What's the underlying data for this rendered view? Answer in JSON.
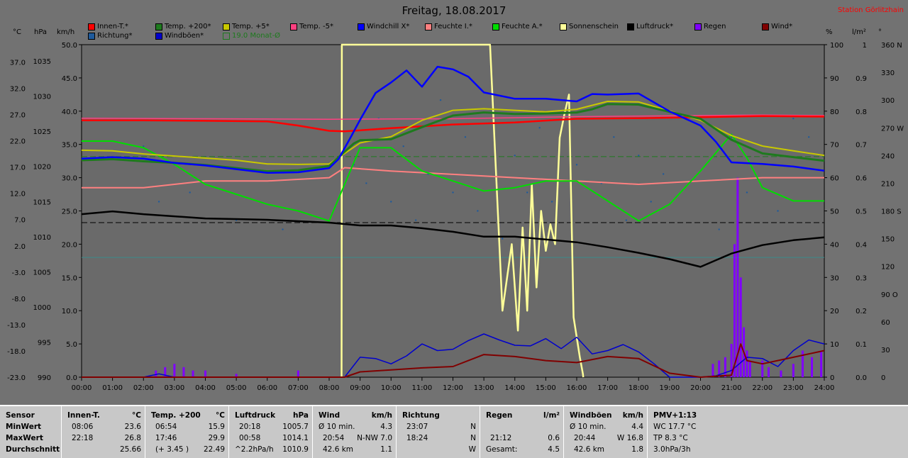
{
  "title": "Freitag, 18.08.2017",
  "station": "Station Görlitzhain",
  "legend": [
    {
      "label": "Innen-T.*",
      "color": "#ff0000"
    },
    {
      "label": "Richtung*",
      "color": "#1e5a9c"
    },
    {
      "label": "Temp. +200*",
      "color": "#1e7a1e"
    },
    {
      "label": "Windböen*",
      "color": "#0000cc"
    },
    {
      "label": "Temp. +5*",
      "color": "#c8c800"
    },
    {
      "label": "19.0 Monat-Ø",
      "color": "#1e7a1e"
    },
    {
      "label": "Temp. -5*",
      "color": "#ff4080"
    },
    {
      "label": "Windchill X*",
      "color": "#0000ff"
    },
    {
      "label": "Feuchte I.*",
      "color": "#ff8080"
    },
    {
      "label": "Feuchte A.*",
      "color": "#00dd00"
    },
    {
      "label": "Sonnenschein",
      "color": "#ffff99"
    },
    {
      "label": "Luftdruck*",
      "color": "#000000"
    },
    {
      "label": "Regen",
      "color": "#8000ff"
    },
    {
      "label": "Wind*",
      "color": "#800000"
    }
  ],
  "units": {
    "celsius": "°C",
    "hpa": "hPa",
    "kmh": "km/h",
    "percent": "%",
    "lm2": "l/m²",
    "deg": "°"
  },
  "chart_data": {
    "type": "line",
    "x_ticks": [
      "00:00",
      "01:00",
      "02:00",
      "03:00",
      "04:00",
      "05:00",
      "06:00",
      "07:00",
      "08:00",
      "09:00",
      "10:00",
      "11:00",
      "12:00",
      "13:00",
      "14:00",
      "15:00",
      "16:00",
      "17:00",
      "18:00",
      "19:00",
      "20:00",
      "21:00",
      "22:00",
      "23:00",
      "24:00"
    ],
    "axes": {
      "celsius_ticks": [
        "37.0",
        "32.0",
        "27.0",
        "22.0",
        "17.0",
        "12.0",
        "7.0",
        "2.0",
        "-3.0",
        "-8.0",
        "-13.0",
        "-18.0",
        "-23.0"
      ],
      "hpa_ticks": [
        "1035",
        "1030",
        "1025",
        "1020",
        "1015",
        "1010",
        "1005",
        "1000",
        "995",
        "990"
      ],
      "kmh_ticks": [
        "50.0",
        "45.0",
        "40.0",
        "35.0",
        "30.0",
        "25.0",
        "20.0",
        "15.0",
        "10.0",
        "5.0",
        "0.0"
      ],
      "percent_ticks": [
        "100",
        "90",
        "80",
        "70",
        "60",
        "50",
        "40",
        "30",
        "20",
        "10",
        "0"
      ],
      "lm2_ticks": [
        "1",
        "0.9",
        "0.8",
        "0.7",
        "0.6",
        "0.5",
        "0.4",
        "0.3",
        "0.2",
        "0.1",
        "0.0"
      ],
      "deg_ticks": [
        "360 N",
        "330",
        "300",
        "270 W",
        "240",
        "210",
        "180 S",
        "150",
        "120",
        "90 O",
        "60",
        "30",
        "0"
      ],
      "ylim_celsius": [
        -23,
        40.3
      ],
      "ylim_kmh": [
        0,
        50
      ],
      "ylim_percent": [
        0,
        100
      ]
    },
    "series": [
      {
        "name": "Innen-T.*",
        "unit": "°C",
        "x": [
          0,
          2,
          4,
          6,
          7,
          8,
          8.5,
          10,
          12,
          14,
          16,
          18,
          20,
          22,
          24
        ],
        "y": [
          25.9,
          25.9,
          25.8,
          25.7,
          24.9,
          23.9,
          23.8,
          24.4,
          25.1,
          25.5,
          26.2,
          26.3,
          26.5,
          26.7,
          26.6
        ]
      },
      {
        "name": "Temp. -5*",
        "unit": "°C",
        "x": [
          0,
          4,
          8,
          12,
          16,
          20,
          22,
          24
        ],
        "y": [
          26.3,
          26.2,
          26.1,
          26.2,
          26.6,
          26.8,
          26.9,
          26.8
        ]
      },
      {
        "name": "Temp. +200*",
        "unit": "°C",
        "x": [
          0,
          1,
          2,
          3,
          4,
          5,
          6,
          7,
          8,
          8.4,
          8.8,
          9,
          10,
          11,
          12,
          13,
          14,
          15,
          16,
          16.5,
          17,
          18,
          19,
          20,
          21,
          22,
          23,
          24
        ],
        "y": [
          18.3,
          18.5,
          18.1,
          17.8,
          17.4,
          16.8,
          16.2,
          16.4,
          17.2,
          19.4,
          21.5,
          22.1,
          22.3,
          24.6,
          26.8,
          27.4,
          27.1,
          27.2,
          27.4,
          28.0,
          29.0,
          28.9,
          27.5,
          26.2,
          22.2,
          19.6,
          18.9,
          18.2
        ]
      },
      {
        "name": "Temp. +5*",
        "unit": "°C",
        "x": [
          0,
          1,
          2,
          3,
          4,
          5,
          6,
          7,
          8,
          8.5,
          9,
          10,
          11,
          12,
          13,
          14,
          15,
          16,
          17,
          18,
          19,
          20,
          21,
          22,
          23,
          24
        ],
        "y": [
          20.2,
          20.1,
          19.5,
          19.1,
          18.7,
          18.3,
          17.6,
          17.5,
          17.6,
          19.6,
          21.6,
          22.8,
          25.9,
          27.8,
          28.1,
          27.8,
          27.5,
          28.0,
          29.5,
          29.4,
          27.7,
          25.9,
          23.0,
          21.0,
          20.1,
          19.2
        ]
      },
      {
        "name": "Windchill X*",
        "unit": "°C",
        "x": [
          0,
          1,
          2,
          3,
          4,
          5,
          6,
          7,
          8,
          8.3,
          8.7,
          9,
          9.5,
          10,
          10.5,
          11,
          11.5,
          12,
          12.5,
          13,
          14,
          15,
          16,
          16.5,
          17,
          18,
          19,
          20,
          20.5,
          21,
          22,
          23,
          24
        ],
        "y": [
          18.6,
          18.9,
          18.6,
          17.8,
          17.3,
          16.6,
          15.9,
          16.0,
          16.8,
          18.5,
          22.7,
          26.0,
          31.1,
          33.1,
          35.4,
          32.3,
          36.1,
          35.6,
          34.2,
          31.2,
          30.0,
          30.0,
          29.5,
          30.9,
          30.8,
          31.0,
          27.6,
          24.9,
          21.8,
          17.9,
          17.6,
          17.1,
          16.3
        ]
      },
      {
        "name": "Feuchte I.*",
        "unit": "%",
        "x": [
          0,
          2,
          4,
          6,
          8,
          8.5,
          10,
          12,
          14,
          16,
          18,
          20,
          22,
          24
        ],
        "y": [
          57,
          57,
          59,
          59,
          60,
          63,
          62,
          61,
          60,
          59,
          58,
          59,
          60,
          60
        ]
      },
      {
        "name": "Feuchte A.*",
        "unit": "%",
        "x": [
          0,
          1,
          2,
          3,
          4,
          5,
          6,
          7,
          8,
          8.5,
          9,
          10,
          11,
          12,
          13,
          14,
          15,
          16,
          17,
          18,
          19,
          20,
          21,
          21.5,
          22,
          23,
          24
        ],
        "y": [
          71,
          71,
          69,
          64,
          58,
          55,
          52,
          50,
          47,
          58,
          69,
          69,
          62,
          59,
          56,
          57,
          59,
          59,
          53,
          47,
          52,
          62,
          73,
          66,
          57,
          53,
          53
        ]
      },
      {
        "name": "Luftdruck*",
        "unit": "hPa",
        "x": [
          0,
          1,
          2,
          3,
          4,
          5,
          6,
          7,
          8,
          9,
          10,
          11,
          12,
          13,
          14,
          15,
          16,
          17,
          18,
          19,
          20,
          21,
          22,
          23,
          24
        ],
        "y": [
          1013.2,
          1013.6,
          1013.2,
          1012.9,
          1012.6,
          1012.5,
          1012.4,
          1012.2,
          1012.0,
          1011.6,
          1011.6,
          1011.2,
          1010.7,
          1010.0,
          1010.0,
          1009.6,
          1009.2,
          1008.5,
          1007.7,
          1006.8,
          1005.7,
          1007.6,
          1008.8,
          1009.5,
          1009.9
        ]
      },
      {
        "name": "Sonnenschein",
        "unit": "%",
        "x": [
          8.4,
          8.41,
          13.2,
          13.3,
          13.6,
          13.9,
          14.1,
          14.25,
          14.4,
          14.55,
          14.7,
          14.85,
          15.0,
          15.15,
          15.3,
          15.45,
          15.6,
          15.75,
          15.9,
          16.1,
          16.2,
          16.21
        ],
        "y": [
          0,
          100,
          100,
          80,
          20,
          40,
          14,
          45,
          20,
          58,
          27,
          50,
          38,
          46,
          40,
          72,
          79,
          85,
          18,
          6,
          1,
          0
        ]
      },
      {
        "name": "Windböen*",
        "unit": "km/h",
        "x": [
          0,
          2,
          2.5,
          3,
          8.5,
          9,
          9.5,
          10,
          10.5,
          11,
          11.5,
          12,
          12.5,
          13,
          13.5,
          14,
          14.5,
          15,
          15.5,
          16,
          16.5,
          17,
          17.5,
          18,
          18.5,
          19,
          20,
          20.5,
          21,
          21.5,
          22,
          22.5,
          23,
          23.5,
          24
        ],
        "y": [
          0,
          0,
          0.5,
          0,
          0,
          3.0,
          2.8,
          2.0,
          3.2,
          5.0,
          4.0,
          4.2,
          5.5,
          6.5,
          5.6,
          4.8,
          4.7,
          5.8,
          4.3,
          6.0,
          3.5,
          4.0,
          4.9,
          3.8,
          2.0,
          0,
          0,
          0.2,
          1.0,
          3.0,
          2.8,
          1.6,
          4.0,
          5.6,
          5.0
        ]
      },
      {
        "name": "Wind*",
        "unit": "km/h",
        "x": [
          0,
          8.5,
          9,
          10,
          11,
          12,
          13,
          14,
          15,
          16,
          17,
          18,
          19,
          20,
          21,
          21.3,
          21.5,
          22,
          23,
          24
        ],
        "y": [
          0,
          0,
          0.8,
          1.1,
          1.4,
          1.6,
          3.4,
          3.1,
          2.5,
          2.2,
          3.1,
          2.8,
          0.6,
          0,
          0.3,
          5.0,
          2.5,
          2.0,
          3.0,
          4.0
        ]
      },
      {
        "name": "Regen",
        "unit": "l/m²",
        "x": [
          2.4,
          2.7,
          3.0,
          3.3,
          3.6,
          4.0,
          5.0,
          7.0,
          20.4,
          20.6,
          20.8,
          21.0,
          21.1,
          21.2,
          21.3,
          21.4,
          21.5,
          21.6,
          22.0,
          22.2,
          22.6,
          23.0,
          23.3,
          23.6,
          23.9
        ],
        "y": [
          0.02,
          0.03,
          0.04,
          0.03,
          0.02,
          0.02,
          0.01,
          0.02,
          0.04,
          0.05,
          0.06,
          0.1,
          0.4,
          0.6,
          0.3,
          0.15,
          0.08,
          0.05,
          0.05,
          0.03,
          0.02,
          0.04,
          0.08,
          0.06,
          0.08
        ]
      },
      {
        "name": "19.0 Monat-Ø",
        "unit": "°C",
        "x": [
          0,
          24
        ],
        "y": [
          19.0,
          19.0
        ]
      }
    ]
  },
  "stats": {
    "sensor": {
      "header": "Sensor",
      "row1": "MinWert",
      "row2": "MaxWert",
      "row3": "Durchschnitt"
    },
    "innen": {
      "header": "Innen-T.",
      "unit": "°C",
      "r1_time": "08:06",
      "r1_val": "23.6",
      "r2_time": "22:18",
      "r2_val": "26.8",
      "r3_val": "25.66"
    },
    "temp": {
      "header": "Temp. +200",
      "unit": "°C",
      "r1_time": "06:54",
      "r1_val": "15.9",
      "r2_time": "17:46",
      "r2_val": "29.9",
      "r3_time": "(+ 3.45 )",
      "r3_val": "22.49"
    },
    "druck": {
      "header": "Luftdruck",
      "unit": "hPa",
      "r1_time": "20:18",
      "r1_val": "1005.7",
      "r2_time": "00:58",
      "r2_val": "1014.1",
      "r3_time": "^2.2hPa/h",
      "r3_val": "1010.9"
    },
    "wind": {
      "header": "Wind",
      "unit": "km/h",
      "r1_time": "Ø 10 min.",
      "r1_val": "4.3",
      "r2_time": "20:54",
      "r2_val": "N-NW 7.0",
      "r3_time": "42.6 km",
      "r3_val": "1.1"
    },
    "richtung": {
      "header": "Richtung",
      "r1_time": "23:07",
      "r1_val": "N",
      "r2_time": "18:24",
      "r2_val": "N",
      "r3_val": "W"
    },
    "regen": {
      "header": "Regen",
      "unit": "l/m²",
      "r2_time": "21:12",
      "r2_val": "0.6",
      "r3_time": "Gesamt:",
      "r3_val": "4.5"
    },
    "boen": {
      "header": "Windböen",
      "unit": "km/h",
      "r1_time": "Ø 10 min.",
      "r1_val": "4.4",
      "r2_time": "20:44",
      "r2_val": "W 16.8",
      "r3_time": "42.6 km",
      "r3_val": "1.8"
    },
    "pmv": {
      "header": "PMV+1:13",
      "r1": "WC 17.7 °C",
      "r2": "TP 8.3 °C",
      "r3": "3.0hPa/3h"
    }
  }
}
